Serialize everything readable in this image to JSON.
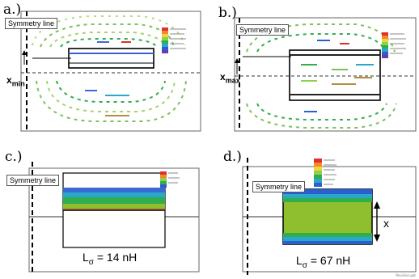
{
  "panels": {
    "a": {
      "label": "a.)",
      "symmetry": "Symmetry line",
      "var_main": "x",
      "var_sub": "min"
    },
    "b": {
      "label": "b.)",
      "symmetry": "Symmetry line",
      "var_main": "x",
      "var_sub": "max"
    },
    "c": {
      "label": "c.)",
      "symmetry": "Symmetry line",
      "ind_main": "L",
      "ind_sub": "σ",
      "ind_value": " = 14 nH"
    },
    "d": {
      "label": "d.)",
      "symmetry": "Symmetry line",
      "ind_main": "L",
      "ind_sub": "σ",
      "ind_value": " = 67 nH",
      "arrow_label": "x"
    }
  },
  "colors": {
    "legend": [
      "#e0302a",
      "#f08a2c",
      "#f2d33a",
      "#8ed14a",
      "#2fae4e",
      "#2aa7c9",
      "#2a5fd0",
      "#6a3aa8"
    ],
    "field_green": "#8fbe2e",
    "field_blue": "#3a6ad0"
  },
  "footer_text": "Revision.ppt"
}
